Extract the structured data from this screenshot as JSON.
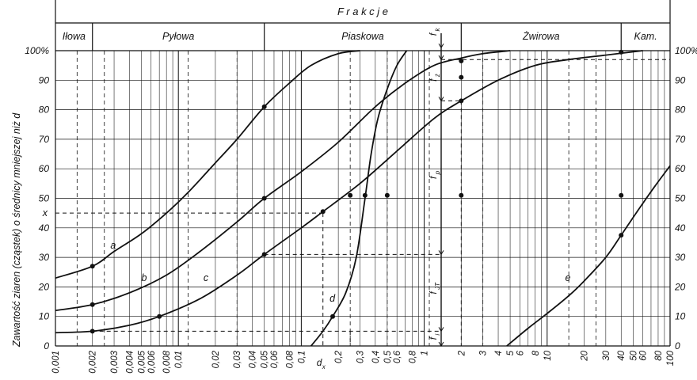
{
  "chart_data": {
    "type": "line",
    "title": "F r a k c j e",
    "xscale": "log",
    "xlim": [
      0.001,
      100
    ],
    "ylim": [
      0,
      100
    ],
    "ylabel": "Zawartość ziaren (cząstek) o średnicy mniejszej niż d",
    "yticks_left": [
      "0",
      "10",
      "20",
      "30",
      "40",
      "50",
      "60",
      "70",
      "80",
      "90",
      "100%"
    ],
    "yticks_right": [
      "0",
      "10",
      "20",
      "30",
      "40",
      "50",
      "60",
      "70",
      "80",
      "90",
      "100%"
    ],
    "xticks": [
      {
        "v": 0.001,
        "t": "0,001"
      },
      {
        "v": 0.002,
        "t": "0,002"
      },
      {
        "v": 0.003,
        "t": "0,003"
      },
      {
        "v": 0.004,
        "t": "0,004"
      },
      {
        "v": 0.005,
        "t": "0,005"
      },
      {
        "v": 0.006,
        "t": "0,006"
      },
      {
        "v": 0.008,
        "t": "0,008"
      },
      {
        "v": 0.01,
        "t": "0,01"
      },
      {
        "v": 0.02,
        "t": "0,02"
      },
      {
        "v": 0.03,
        "t": "0,03"
      },
      {
        "v": 0.04,
        "t": "0,04"
      },
      {
        "v": 0.05,
        "t": "0,05"
      },
      {
        "v": 0.06,
        "t": "0,06"
      },
      {
        "v": 0.08,
        "t": "0,08"
      },
      {
        "v": 0.1,
        "t": "0,1"
      },
      {
        "v": 0.2,
        "t": "0,2"
      },
      {
        "v": 0.3,
        "t": "0,3"
      },
      {
        "v": 0.4,
        "t": "0,4"
      },
      {
        "v": 0.5,
        "t": "0,5"
      },
      {
        "v": 0.6,
        "t": "0,6"
      },
      {
        "v": 0.8,
        "t": "0,8"
      },
      {
        "v": 1,
        "t": "1"
      },
      {
        "v": 2,
        "t": "2"
      },
      {
        "v": 3,
        "t": "3"
      },
      {
        "v": 4,
        "t": "4"
      },
      {
        "v": 5,
        "t": "5"
      },
      {
        "v": 6,
        "t": "6"
      },
      {
        "v": 8,
        "t": "8"
      },
      {
        "v": 10,
        "t": "10"
      },
      {
        "v": 20,
        "t": "20"
      },
      {
        "v": 30,
        "t": "30"
      },
      {
        "v": 40,
        "t": "40"
      },
      {
        "v": 50,
        "t": "50"
      },
      {
        "v": 60,
        "t": "60"
      },
      {
        "v": 80,
        "t": "80"
      },
      {
        "v": 100,
        "t": "100"
      }
    ],
    "fractions": [
      {
        "name": "Iłowa",
        "from": 0.001,
        "to": 0.002
      },
      {
        "name": "Pyłowa",
        "from": 0.002,
        "to": 0.05
      },
      {
        "name": "Piaskowa",
        "from": 0.05,
        "to": 2
      },
      {
        "name": "Żwirowa",
        "from": 2,
        "to": 40
      },
      {
        "name": "Kam.",
        "from": 40,
        "to": 100
      }
    ],
    "series": [
      {
        "name": "a",
        "points": [
          [
            0.001,
            23
          ],
          [
            0.002,
            27
          ],
          [
            0.003,
            32
          ],
          [
            0.005,
            38
          ],
          [
            0.008,
            45
          ],
          [
            0.012,
            52
          ],
          [
            0.02,
            62
          ],
          [
            0.03,
            70
          ],
          [
            0.05,
            81
          ],
          [
            0.08,
            89
          ],
          [
            0.12,
            95
          ],
          [
            0.2,
            99
          ],
          [
            0.3,
            100.5
          ]
        ]
      },
      {
        "name": "b",
        "points": [
          [
            0.001,
            12
          ],
          [
            0.002,
            14
          ],
          [
            0.004,
            18
          ],
          [
            0.008,
            24
          ],
          [
            0.015,
            32
          ],
          [
            0.03,
            42
          ],
          [
            0.05,
            50
          ],
          [
            0.1,
            59
          ],
          [
            0.2,
            69
          ],
          [
            0.4,
            81
          ],
          [
            0.7,
            89
          ],
          [
            1.2,
            95
          ],
          [
            2,
            97.5
          ],
          [
            3,
            99
          ],
          [
            5,
            100.5
          ]
        ]
      },
      {
        "name": "c",
        "points": [
          [
            0.001,
            4.5
          ],
          [
            0.002,
            5
          ],
          [
            0.004,
            7
          ],
          [
            0.007,
            10
          ],
          [
            0.015,
            16
          ],
          [
            0.03,
            24
          ],
          [
            0.05,
            31
          ],
          [
            0.1,
            40
          ],
          [
            0.15,
            45.5
          ],
          [
            0.3,
            55
          ],
          [
            0.6,
            66
          ],
          [
            1.2,
            77
          ],
          [
            2,
            83
          ],
          [
            4,
            90
          ],
          [
            8,
            95
          ],
          [
            15,
            97
          ],
          [
            30,
            98.5
          ],
          [
            60,
            100.5
          ]
        ]
      },
      {
        "name": "d",
        "points": [
          [
            0.12,
            0
          ],
          [
            0.15,
            5
          ],
          [
            0.18,
            10
          ],
          [
            0.23,
            18
          ],
          [
            0.28,
            30
          ],
          [
            0.33,
            50
          ],
          [
            0.37,
            65
          ],
          [
            0.42,
            77
          ],
          [
            0.5,
            87
          ],
          [
            0.6,
            95
          ],
          [
            0.72,
            100.5
          ]
        ]
      },
      {
        "name": "e",
        "points": [
          [
            4.7,
            0
          ],
          [
            7,
            6
          ],
          [
            10,
            11
          ],
          [
            15,
            17
          ],
          [
            20,
            22
          ],
          [
            30,
            30
          ],
          [
            40,
            37.5
          ],
          [
            55,
            46
          ],
          [
            75,
            54
          ],
          [
            100,
            61
          ]
        ]
      }
    ],
    "annotations": [
      "x",
      "d",
      "d_x",
      "f_k",
      "f_ż",
      "f_p",
      "f_JT",
      "f_i"
    ]
  }
}
